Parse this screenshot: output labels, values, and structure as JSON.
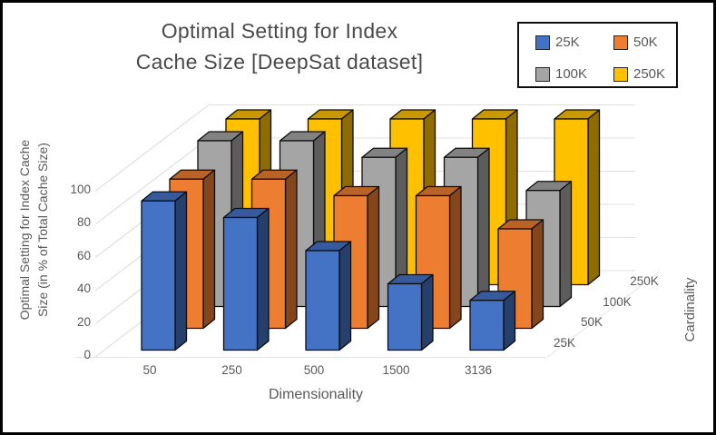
{
  "title": {
    "line1": "Optimal Setting for Index",
    "line2": "Cache Size [DeepSat dataset]"
  },
  "legend": {
    "items": [
      {
        "label": "25K",
        "color": "#4472C4"
      },
      {
        "label": "50K",
        "color": "#ED7D31"
      },
      {
        "label": "100K",
        "color": "#A5A5A5"
      },
      {
        "label": "250K",
        "color": "#FFC000"
      }
    ]
  },
  "axes": {
    "value": {
      "title_line1": "Optimal Setting for Index Cache",
      "title_line2": "Size (in % of Total Cache Size)",
      "ticks": [
        "0",
        "20",
        "40",
        "60",
        "80",
        "100"
      ]
    },
    "x": {
      "title": "Dimensionality",
      "categories": [
        "50",
        "250",
        "500",
        "1500",
        "3136"
      ]
    },
    "depth": {
      "title": "Cardinality",
      "labels": [
        "25K",
        "50K",
        "100K",
        "250K"
      ]
    }
  },
  "chart_data": {
    "type": "bar",
    "projection": "3d",
    "title": "Optimal Setting for Index Cache Size [DeepSat dataset]",
    "xlabel": "Dimensionality",
    "ylabel": "Optimal Setting for Index Cache Size (in % of Total Cache Size)",
    "zlabel": "Cardinality",
    "ylim": [
      0,
      100
    ],
    "ytick_step": 20,
    "grid": true,
    "legend_position": "top-right",
    "categories": [
      "50",
      "250",
      "500",
      "1500",
      "3136"
    ],
    "series": [
      {
        "name": "25K",
        "color": "#4472C4",
        "values": [
          90,
          80,
          60,
          40,
          30
        ]
      },
      {
        "name": "50K",
        "color": "#ED7D31",
        "values": [
          90,
          90,
          80,
          80,
          60
        ]
      },
      {
        "name": "100K",
        "color": "#A5A5A5",
        "values": [
          100,
          100,
          90,
          90,
          70
        ]
      },
      {
        "name": "250K",
        "color": "#FFC000",
        "values": [
          100,
          100,
          100,
          100,
          100
        ]
      }
    ]
  }
}
